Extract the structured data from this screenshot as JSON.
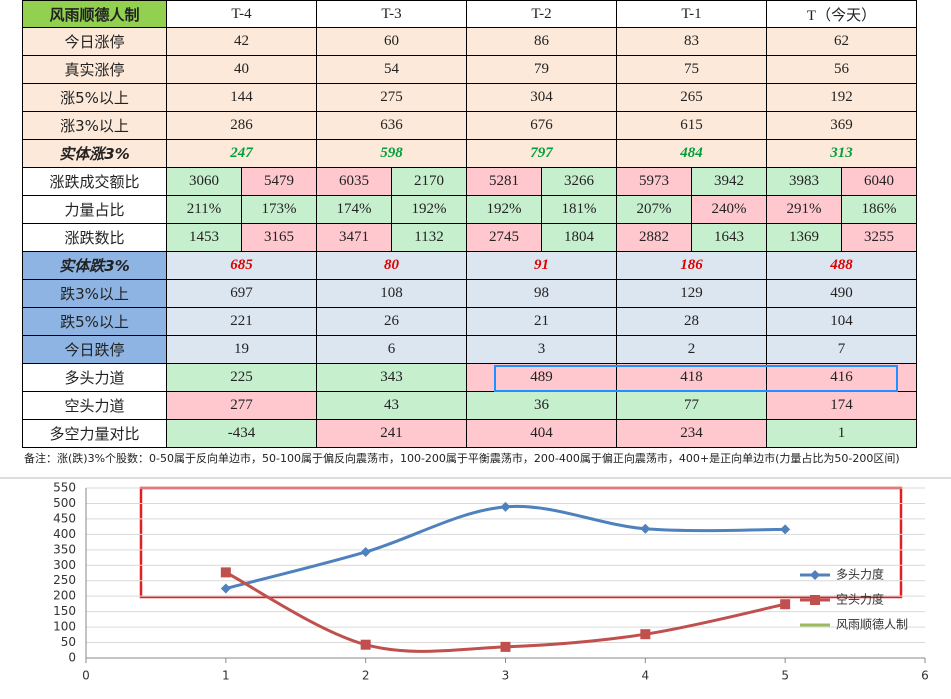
{
  "table": {
    "header": [
      "风雨顺德人制",
      "T-4",
      "T-3",
      "T-2",
      "T-1",
      "T（今天）"
    ],
    "header_fill": "#92d050",
    "rows": [
      {
        "label": "今日涨停",
        "label_fill": "#fde9d9",
        "fill": "#fde9d9",
        "cells": [
          42,
          60,
          86,
          83,
          62
        ]
      },
      {
        "label": "真实涨停",
        "label_fill": "#fde9d9",
        "fill": "#fde9d9",
        "cells": [
          40,
          54,
          79,
          75,
          56
        ]
      },
      {
        "label": "涨5%以上",
        "label_fill": "#fde9d9",
        "fill": "#fde9d9",
        "cells": [
          144,
          275,
          304,
          265,
          192
        ]
      },
      {
        "label": "涨3%以上",
        "label_fill": "#fde9d9",
        "fill": "#fde9d9",
        "cells": [
          286,
          636,
          676,
          615,
          369
        ]
      },
      {
        "label": "实体涨3%",
        "label_fill": "#fde9d9",
        "fill": "#fde9d9",
        "emph": "#00a03c",
        "cells": [
          247,
          598,
          797,
          484,
          313
        ]
      },
      {
        "label": "涨跌成交额比",
        "label_fill": "#ffffff",
        "cells": [
          3060,
          5479,
          6035,
          2170,
          5281,
          3266,
          5973,
          3942,
          3983,
          6040
        ],
        "cell_fills": [
          "#c6efce",
          "#ffc7ce",
          "#ffc7ce",
          "#c6efce",
          "#ffc7ce",
          "#c6efce",
          "#ffc7ce",
          "#c6efce",
          "#c6efce",
          "#ffc7ce"
        ]
      },
      {
        "label": "力量占比",
        "label_fill": "#ffffff",
        "cells": [
          "211%",
          "173%",
          "174%",
          "192%",
          "192%",
          "181%",
          "207%",
          "240%",
          "291%",
          "186%"
        ],
        "cell_fills": [
          "#c6efce",
          "#c6efce",
          "#c6efce",
          "#c6efce",
          "#c6efce",
          "#c6efce",
          "#c6efce",
          "#ffc7ce",
          "#ffc7ce",
          "#c6efce"
        ]
      },
      {
        "label": "涨跌数比",
        "label_fill": "#ffffff",
        "cells": [
          1453,
          3165,
          3471,
          1132,
          2745,
          1804,
          2882,
          1643,
          1369,
          3255
        ],
        "cell_fills": [
          "#c6efce",
          "#ffc7ce",
          "#ffc7ce",
          "#c6efce",
          "#ffc7ce",
          "#c6efce",
          "#ffc7ce",
          "#c6efce",
          "#c6efce",
          "#ffc7ce"
        ]
      },
      {
        "label": "实体跌3%",
        "label_fill": "#8db4e2",
        "fill": "#dce6f1",
        "emph": "#e00000",
        "cells": [
          685,
          80,
          91,
          186,
          488
        ]
      },
      {
        "label": "跌3%以上",
        "label_fill": "#8db4e2",
        "fill": "#dce6f1",
        "cells": [
          697,
          108,
          98,
          129,
          490
        ]
      },
      {
        "label": "跌5%以上",
        "label_fill": "#8db4e2",
        "fill": "#dce6f1",
        "cells": [
          221,
          26,
          21,
          28,
          104
        ]
      },
      {
        "label": "今日跌停",
        "label_fill": "#8db4e2",
        "fill": "#dce6f1",
        "cells": [
          19,
          6,
          3,
          2,
          7
        ]
      },
      {
        "label": "多头力道",
        "label_fill": "#ffffff",
        "cells": [
          225,
          343,
          489,
          418,
          416
        ],
        "cell_fills": [
          "#c6efce",
          "#c6efce",
          "#ffc7ce",
          "#ffc7ce",
          "#ffc7ce"
        ]
      },
      {
        "label": "空头力道",
        "label_fill": "#ffffff",
        "cells": [
          277,
          43,
          36,
          77,
          174
        ],
        "cell_fills": [
          "#ffc7ce",
          "#c6efce",
          "#c6efce",
          "#c6efce",
          "#ffc7ce"
        ]
      },
      {
        "label": "多空力量对比",
        "label_fill": "#ffffff",
        "cells": [
          -434,
          241,
          404,
          234,
          1
        ],
        "cell_fills": [
          "#c6efce",
          "#ffc7ce",
          "#ffc7ce",
          "#ffc7ce",
          "#c6efce"
        ]
      }
    ]
  },
  "note": "备注：涨(跌)3%个股数：0-50属于反向单边市，50-100属于偏反向震荡市，100-200属于平衡震荡市，200-400属于偏正向震荡市，400+是正向单边市(力量占比为50-200区间)",
  "chart_data": {
    "type": "line",
    "x": [
      1,
      2,
      3,
      4,
      5
    ],
    "series": [
      {
        "name": "多头力度",
        "color": "#4f81bd",
        "values": [
          225,
          343,
          489,
          418,
          416
        ]
      },
      {
        "name": "空头力度",
        "color": "#c0504d",
        "values": [
          277,
          43,
          36,
          77,
          174
        ]
      },
      {
        "name": "风雨顺德人制",
        "color": "#9bbb59"
      }
    ],
    "xlim": [
      0,
      6
    ],
    "xticks": [
      0,
      1,
      2,
      3,
      4,
      5,
      6
    ],
    "ylim": [
      0,
      550
    ],
    "yticks": [
      0,
      50,
      100,
      150,
      200,
      250,
      300,
      350,
      400,
      450,
      500,
      550
    ],
    "grid": true,
    "legend": "right"
  }
}
